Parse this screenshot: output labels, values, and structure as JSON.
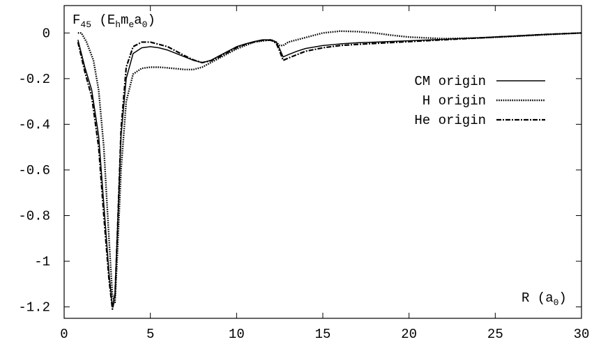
{
  "chart_data": {
    "type": "line",
    "ylabel_parts": [
      "F",
      "45",
      "  (E",
      "h",
      "m",
      "e",
      "a",
      "0",
      ")"
    ],
    "xlabel_parts": [
      "R  (a",
      "0",
      ")"
    ],
    "xlim": [
      0,
      30
    ],
    "ylim": [
      -1.25,
      0.12
    ],
    "xticks": [
      0,
      5,
      10,
      15,
      20,
      25,
      30
    ],
    "xtick_labels": [
      "0",
      "5",
      "10",
      "15",
      "20",
      "25",
      "30"
    ],
    "yticks": [
      0,
      -0.2,
      -0.4,
      -0.6,
      -0.8,
      -1,
      -1.2
    ],
    "ytick_labels": [
      "0",
      "-0.2",
      "-0.4",
      "-0.6",
      "-0.8",
      "-1",
      "-1.2"
    ],
    "grid": false,
    "legend_position": "top-right",
    "series": [
      {
        "name": "CM origin",
        "style": "solid",
        "x": [
          0.8,
          1.2,
          1.6,
          2.0,
          2.3,
          2.6,
          2.8,
          2.95,
          3.1,
          3.3,
          3.6,
          4.0,
          4.5,
          5.0,
          5.5,
          6.0,
          6.5,
          7.0,
          7.5,
          8.0,
          8.5,
          9.0,
          9.5,
          10.0,
          10.5,
          11.0,
          11.5,
          12.0,
          12.3,
          12.5,
          12.7,
          13.0,
          13.5,
          14.0,
          15.0,
          16.0,
          17.0,
          18.0,
          20.0,
          22.0,
          24.0,
          26.0,
          28.0,
          30.0
        ],
        "y": [
          -0.03,
          -0.15,
          -0.25,
          -0.45,
          -0.75,
          -1.05,
          -1.2,
          -1.14,
          -0.85,
          -0.45,
          -0.2,
          -0.09,
          -0.065,
          -0.06,
          -0.065,
          -0.075,
          -0.09,
          -0.105,
          -0.12,
          -0.13,
          -0.12,
          -0.1,
          -0.08,
          -0.06,
          -0.048,
          -0.038,
          -0.03,
          -0.03,
          -0.04,
          -0.07,
          -0.105,
          -0.095,
          -0.08,
          -0.068,
          -0.055,
          -0.048,
          -0.043,
          -0.04,
          -0.034,
          -0.028,
          -0.021,
          -0.014,
          -0.006,
          0.0
        ]
      },
      {
        "name": "H origin",
        "style": "dotted",
        "x": [
          0.8,
          1.0,
          1.3,
          1.7,
          2.0,
          2.3,
          2.6,
          2.8,
          2.95,
          3.1,
          3.3,
          3.6,
          4.0,
          4.5,
          5.0,
          5.5,
          6.0,
          7.0,
          7.5,
          8.0,
          9.0,
          10.0,
          11.0,
          12.0,
          12.3,
          12.5,
          12.7,
          13.0,
          14.0,
          15.0,
          16.0,
          17.0,
          18.0,
          19.0,
          20.0,
          22.0,
          24.0,
          26.0,
          28.0,
          30.0
        ],
        "y": [
          0.0,
          0.0,
          -0.04,
          -0.12,
          -0.25,
          -0.5,
          -0.9,
          -1.15,
          -1.18,
          -0.95,
          -0.6,
          -0.3,
          -0.18,
          -0.155,
          -0.15,
          -0.15,
          -0.153,
          -0.16,
          -0.16,
          -0.15,
          -0.11,
          -0.07,
          -0.04,
          -0.03,
          -0.04,
          -0.055,
          -0.055,
          -0.04,
          -0.02,
          0.0,
          0.008,
          0.006,
          0.0,
          -0.01,
          -0.018,
          -0.025,
          -0.022,
          -0.015,
          -0.007,
          0.0
        ]
      },
      {
        "name": "He origin",
        "style": "dash-dot",
        "x": [
          0.8,
          1.2,
          1.6,
          2.0,
          2.3,
          2.6,
          2.8,
          2.95,
          3.1,
          3.3,
          3.6,
          4.0,
          4.5,
          5.0,
          5.5,
          6.0,
          6.5,
          7.0,
          7.5,
          8.0,
          8.5,
          9.0,
          9.5,
          10.0,
          10.5,
          11.0,
          11.5,
          12.0,
          12.3,
          12.5,
          12.7,
          13.0,
          13.5,
          14.0,
          15.0,
          16.0,
          17.0,
          18.0,
          20.0,
          22.0,
          24.0,
          26.0,
          28.0,
          30.0
        ],
        "y": [
          -0.04,
          -0.17,
          -0.28,
          -0.5,
          -0.8,
          -1.08,
          -1.21,
          -1.15,
          -0.85,
          -0.42,
          -0.15,
          -0.06,
          -0.04,
          -0.04,
          -0.05,
          -0.06,
          -0.08,
          -0.1,
          -0.118,
          -0.13,
          -0.122,
          -0.105,
          -0.085,
          -0.065,
          -0.05,
          -0.04,
          -0.032,
          -0.032,
          -0.045,
          -0.08,
          -0.12,
          -0.11,
          -0.095,
          -0.08,
          -0.065,
          -0.055,
          -0.05,
          -0.046,
          -0.038,
          -0.03,
          -0.022,
          -0.014,
          -0.006,
          0.0
        ]
      }
    ]
  }
}
